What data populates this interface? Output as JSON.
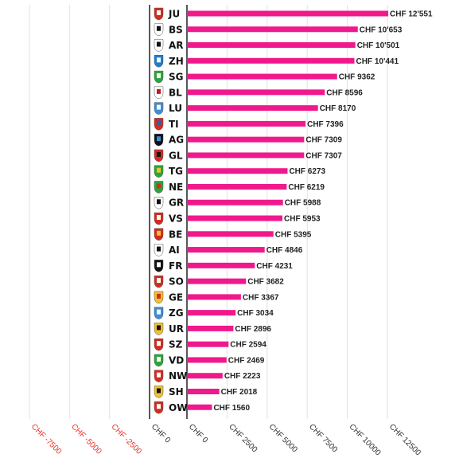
{
  "chart_data": {
    "type": "bar",
    "orientation": "horizontal",
    "title": "",
    "xlabel": "",
    "ylabel": "",
    "grid": true,
    "xlim": [
      -10000,
      12500
    ],
    "negative_ticks": [
      -7500,
      -5000,
      -2500,
      0
    ],
    "negative_tick_labels": [
      "CHF -7500",
      "CHF -5000",
      "CHF -2500",
      "CHF 0"
    ],
    "positive_ticks": [
      0,
      2500,
      5000,
      7500,
      10000,
      12500
    ],
    "positive_tick_labels": [
      "CHF 0",
      "CHF 2500",
      "CHF 5000",
      "CHF 7500",
      "CHF 10000",
      "CHF 12500"
    ],
    "categories": [
      "JU",
      "BS",
      "AR",
      "ZH",
      "SG",
      "BL",
      "LU",
      "TI",
      "AG",
      "GL",
      "TG",
      "NE",
      "GR",
      "VS",
      "BE",
      "AI",
      "FR",
      "SO",
      "GE",
      "ZG",
      "UR",
      "SZ",
      "VD",
      "NW",
      "SH",
      "OW"
    ],
    "values": [
      12551,
      10653,
      10501,
      10441,
      9362,
      8596,
      8170,
      7396,
      7309,
      7307,
      6273,
      6219,
      5988,
      5953,
      5395,
      4846,
      4231,
      3682,
      3367,
      3034,
      2896,
      2594,
      2469,
      2223,
      2018,
      1560
    ],
    "value_labels": [
      "CHF 12'551",
      "CHF 10'653",
      "CHF 10'501",
      "CHF 10'441",
      "CHF 9362",
      "CHF 8596",
      "CHF 8170",
      "CHF 7396",
      "CHF 7309",
      "CHF 7307",
      "CHF 6273",
      "CHF 6219",
      "CHF 5988",
      "CHF 5953",
      "CHF 5395",
      "CHF 4846",
      "CHF 4231",
      "CHF 3682",
      "CHF 3367",
      "CHF 3034",
      "CHF 2896",
      "CHF 2594",
      "CHF 2469",
      "CHF 2223",
      "CHF 2018",
      "CHF 1560"
    ],
    "bar_color": "#f0198c",
    "negative_tick_color": "#e8332a",
    "tick_color": "#333333",
    "emblem_colors": {
      "JU": [
        "#d52b1e",
        "#ffffff"
      ],
      "BS": [
        "#ffffff",
        "#111111"
      ],
      "AR": [
        "#ffffff",
        "#111111"
      ],
      "ZH": [
        "#1b7fd1",
        "#ffffff"
      ],
      "SG": [
        "#2aa63a",
        "#ffffff"
      ],
      "BL": [
        "#ffffff",
        "#c4161c"
      ],
      "LU": [
        "#3d8edb",
        "#ffffff"
      ],
      "TI": [
        "#d52b1e",
        "#2b5fb0"
      ],
      "AG": [
        "#111111",
        "#3d8edb"
      ],
      "GL": [
        "#d52b1e",
        "#111111"
      ],
      "TG": [
        "#2aa63a",
        "#f2c12e"
      ],
      "NE": [
        "#2aa63a",
        "#d52b1e"
      ],
      "GR": [
        "#ffffff",
        "#111111"
      ],
      "VS": [
        "#d52b1e",
        "#ffffff"
      ],
      "BE": [
        "#d52b1e",
        "#f2c12e"
      ],
      "AI": [
        "#ffffff",
        "#111111"
      ],
      "FR": [
        "#111111",
        "#ffffff"
      ],
      "SO": [
        "#d52b1e",
        "#ffffff"
      ],
      "GE": [
        "#f2c12e",
        "#d52b1e"
      ],
      "ZG": [
        "#3d8edb",
        "#ffffff"
      ],
      "UR": [
        "#f2c12e",
        "#111111"
      ],
      "SZ": [
        "#d52b1e",
        "#ffffff"
      ],
      "VD": [
        "#2aa63a",
        "#ffffff"
      ],
      "NW": [
        "#d52b1e",
        "#ffffff"
      ],
      "SH": [
        "#f2c12e",
        "#111111"
      ],
      "OW": [
        "#d52b1e",
        "#ffffff"
      ]
    }
  }
}
